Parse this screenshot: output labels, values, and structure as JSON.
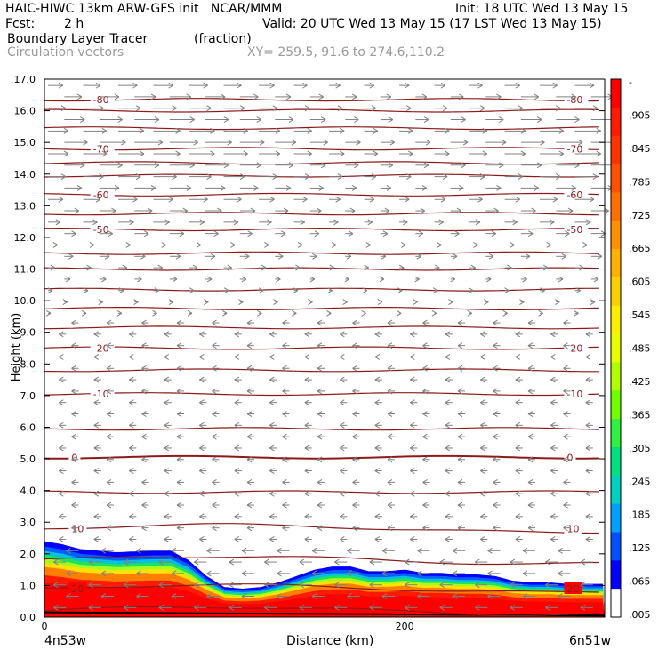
{
  "header": {
    "line1_left": "HAIC-HIWC 13km ARW-GFS init   NCAR/MMM",
    "line1_right": "Init: 18 UTC Wed 13 May 15",
    "fcst_label": "Fcst:",
    "fcst_value": "2 h",
    "line2_right": "Valid: 20 UTC Wed 13 May 15 (17 LST Wed 13 May 15)",
    "field_name": "Boundary Layer Tracer",
    "field_units": "(fraction)",
    "vector_label": "Circulation vectors",
    "xy_label": "XY= 259.5, 91.6 to 274.6,110.2"
  },
  "chart_data": {
    "type": "cross-section",
    "xlabel": "Distance (km)",
    "ylabel": "Height (km)",
    "xlim": [
      0,
      311
    ],
    "ylim": [
      0,
      17
    ],
    "x_ticks": [
      {
        "value": 0,
        "label": "0"
      },
      {
        "value": 200,
        "label": "200"
      }
    ],
    "x_end_labels": {
      "left": "4n53w",
      "right": "6n51w"
    },
    "y_ticks": [
      "0.0",
      "1.0",
      "2.0",
      "3.0",
      "4.0",
      "5.0",
      "6.0",
      "7.0",
      "8.0",
      "9.0",
      "10.0",
      "11.0",
      "12.0",
      "13.0",
      "14.0",
      "15.0",
      "16.0",
      "17.0"
    ],
    "temperature_contours": {
      "color": "#8b1a1a",
      "levels": [
        {
          "label": "20",
          "height": 0.9,
          "label_positions": [
            "left",
            "right"
          ]
        },
        {
          "label": "10",
          "height": 2.8,
          "label_positions": [
            "left",
            "right"
          ]
        },
        {
          "label": "0",
          "height": 5.05,
          "label_positions": [
            "left",
            "right"
          ]
        },
        {
          "label": "-10",
          "height": 7.05,
          "label_positions": [
            "left",
            "right"
          ]
        },
        {
          "label": "-20",
          "height": 8.5,
          "label_positions": [
            "left",
            "right"
          ]
        },
        {
          "label": "-50",
          "height": 12.25,
          "label_positions": [
            "left",
            "right"
          ]
        },
        {
          "label": "-60",
          "height": 13.35,
          "label_positions": [
            "left",
            "right"
          ]
        },
        {
          "label": "-70",
          "height": 14.8,
          "label_positions": [
            "left",
            "right"
          ]
        },
        {
          "label": "-80",
          "height": 16.35,
          "label_positions": [
            "left",
            "right"
          ]
        }
      ],
      "unlabeled_heights": [
        0.2,
        1.8,
        3.95,
        5.95,
        7.8,
        9.15,
        9.75,
        10.35,
        11.0,
        11.5,
        12.75,
        13.95,
        14.35,
        15.45,
        16.0
      ]
    },
    "tracer_top_km": {
      "x": [
        0,
        10,
        20,
        40,
        60,
        70,
        80,
        90,
        100,
        110,
        120,
        130,
        140,
        150,
        160,
        170,
        180,
        190,
        200,
        210,
        220,
        230,
        240,
        250,
        260,
        270,
        280,
        290,
        300,
        311
      ],
      "values": [
        2.4,
        2.3,
        2.15,
        2.05,
        2.1,
        2.1,
        1.8,
        1.3,
        0.95,
        0.9,
        0.95,
        1.1,
        1.3,
        1.5,
        1.6,
        1.6,
        1.45,
        1.45,
        1.5,
        1.4,
        1.4,
        1.35,
        1.35,
        1.3,
        1.15,
        1.1,
        1.1,
        1.05,
        1.05,
        1.05
      ]
    },
    "vectors": {
      "color": "#808080",
      "upper_rows": {
        "direction": "east",
        "height_range": [
          9.5,
          17.0
        ],
        "max_speed_near_km": 15.0
      },
      "lower_rows": {
        "direction": "west",
        "height_range": [
          0.2,
          9.3
        ]
      },
      "x_spacing_km": 19.5
    },
    "colorbar": {
      "labels": [
        "-",
        ".905",
        ".845",
        ".785",
        ".725",
        ".665",
        ".605",
        ".545",
        ".485",
        ".425",
        ".365",
        ".305",
        ".245",
        ".185",
        ".125",
        ".065",
        ".005"
      ],
      "colors": [
        "#ff0000",
        "#ff1a00",
        "#ff3300",
        "#ff5000",
        "#ff7000",
        "#ff9000",
        "#ffb000",
        "#ffd000",
        "#ffee00",
        "#e8ff00",
        "#b0ff00",
        "#70ff00",
        "#30f040",
        "#00e080",
        "#00d0c0",
        "#00a0ff",
        "#0050ff",
        "#0000ff",
        "#ffffff"
      ]
    }
  }
}
